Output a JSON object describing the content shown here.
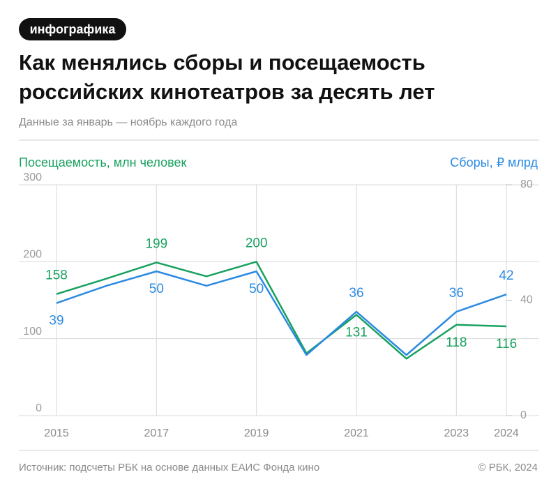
{
  "badge": "инфографика",
  "chart_data": {
    "type": "line",
    "title": [
      "Как менялись сборы и посещаемость",
      "российских кинотеатров за десять лет"
    ],
    "subtitle": "Данные за январь — ноябрь каждого года",
    "y_label": "Посещаемость, млн человек",
    "y2_label": "Сборы, ₽ млрд",
    "x": [
      2015,
      2016,
      2017,
      2018,
      2019,
      2020,
      2021,
      2022,
      2023,
      2024
    ],
    "xlim": [
      2015,
      2024
    ],
    "xticks": [
      2015,
      2017,
      2019,
      2021,
      2023,
      2024
    ],
    "ylim": [
      0,
      300
    ],
    "yticks": [
      0,
      100,
      200,
      300
    ],
    "y2lim": [
      0,
      80
    ],
    "y2ticks": [
      0,
      40,
      80
    ],
    "grid": true,
    "series": [
      {
        "name": "Посещаемость",
        "color": "#18a15f",
        "axis": "y",
        "values": [
          158,
          178,
          199,
          181,
          200,
          81,
          131,
          74,
          118,
          116
        ],
        "value_labels": [
          "158",
          null,
          "199",
          null,
          "200",
          null,
          "131",
          null,
          "118",
          "116"
        ]
      },
      {
        "name": "Сборы",
        "color": "#2b8ae2",
        "axis": "y2",
        "values": [
          39,
          45,
          50,
          45,
          50,
          21,
          36,
          21,
          36,
          42
        ],
        "value_labels": [
          "39",
          null,
          "50",
          null,
          "50",
          null,
          "36",
          null,
          "36",
          "42"
        ]
      }
    ],
    "source": "Источник: подсчеты РБК на основе данных ЕАИС Фонда кино",
    "copyright": "© РБК, 2024"
  }
}
